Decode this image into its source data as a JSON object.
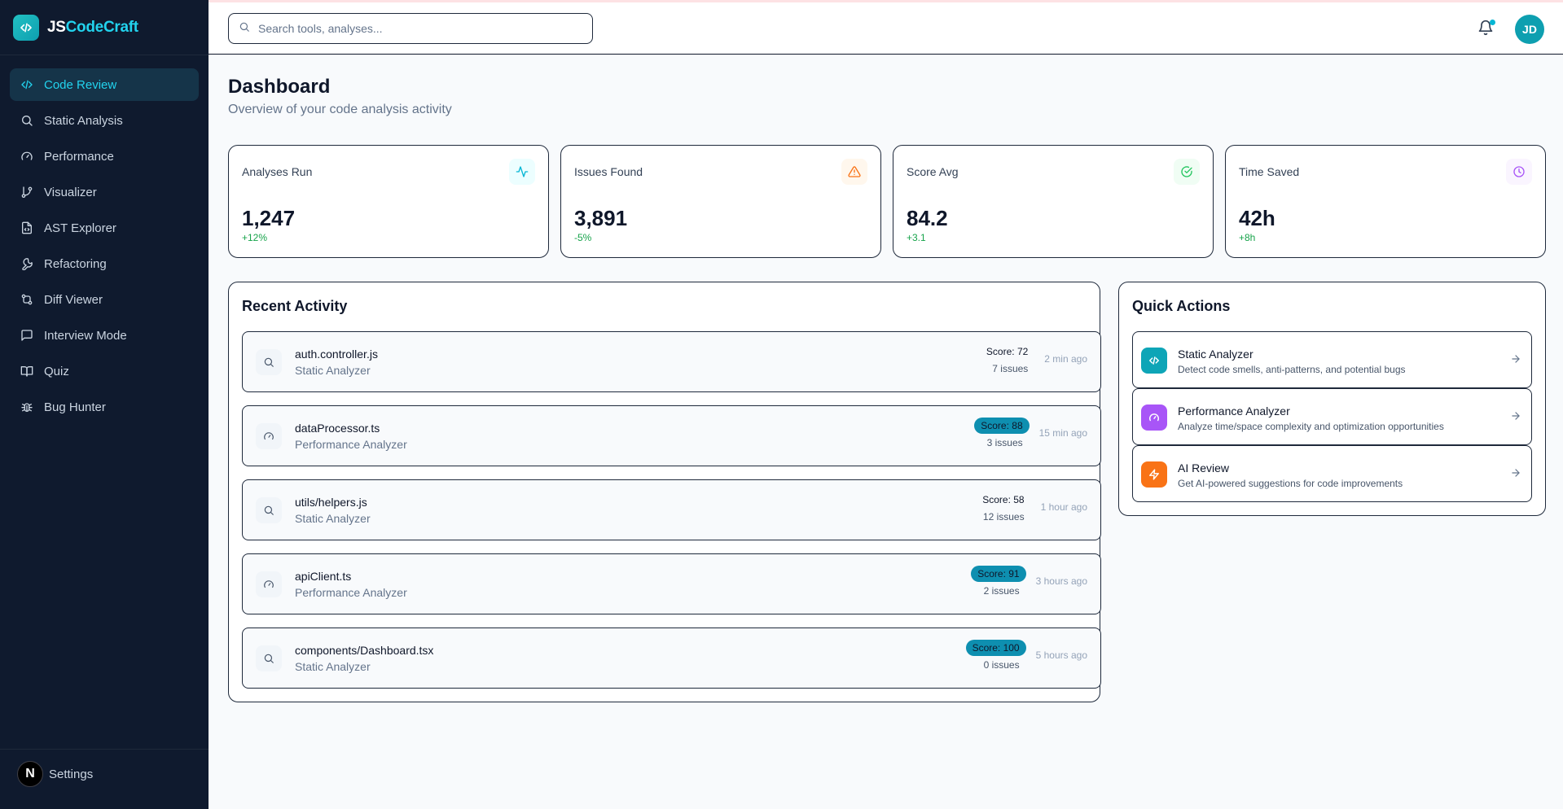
{
  "brand": {
    "prefix": "JS",
    "name": "CodeCraft"
  },
  "sidebar": {
    "items": [
      {
        "label": "Code Review",
        "icon": "code-icon",
        "active": true
      },
      {
        "label": "Static Analysis",
        "icon": "search-icon"
      },
      {
        "label": "Performance",
        "icon": "gauge-icon"
      },
      {
        "label": "Visualizer",
        "icon": "git-branch-icon"
      },
      {
        "label": "AST Explorer",
        "icon": "file-code-icon"
      },
      {
        "label": "Refactoring",
        "icon": "wrench-icon"
      },
      {
        "label": "Diff Viewer",
        "icon": "git-compare-icon"
      },
      {
        "label": "Interview Mode",
        "icon": "message-square-icon"
      },
      {
        "label": "Quiz",
        "icon": "book-open-icon"
      },
      {
        "label": "Bug Hunter",
        "icon": "bug-icon"
      }
    ],
    "settings_label": "Settings",
    "n_badge": "N"
  },
  "topbar": {
    "search_placeholder": "Search tools, analyses...",
    "avatar_initials": "JD"
  },
  "page": {
    "title": "Dashboard",
    "subtitle": "Overview of your code analysis activity"
  },
  "stats": [
    {
      "label": "Analyses Run",
      "value": "1,247",
      "change": "+12%",
      "icon": "activity-icon",
      "color": "#06b6d4",
      "bg": "#ecfeff"
    },
    {
      "label": "Issues Found",
      "value": "3,891",
      "change": "-5%",
      "icon": "alert-triangle-icon",
      "color": "#f97316",
      "bg": "#fff7ed"
    },
    {
      "label": "Score Avg",
      "value": "84.2",
      "change": "+3.1",
      "icon": "check-circle-icon",
      "color": "#22c55e",
      "bg": "#f0fdf4"
    },
    {
      "label": "Time Saved",
      "value": "42h",
      "change": "+8h",
      "icon": "clock-icon",
      "color": "#a855f7",
      "bg": "#faf5ff"
    }
  ],
  "recent": {
    "title": "Recent Activity",
    "items": [
      {
        "name": "auth.controller.js",
        "tool": "Static Analyzer",
        "score": "Score: 72",
        "issues": "7 issues",
        "time": "2 min ago",
        "pill": false,
        "icon": "search-icon"
      },
      {
        "name": "dataProcessor.ts",
        "tool": "Performance Analyzer",
        "score": "Score: 88",
        "issues": "3 issues",
        "time": "15 min ago",
        "pill": true,
        "icon": "gauge-icon"
      },
      {
        "name": "utils/helpers.js",
        "tool": "Static Analyzer",
        "score": "Score: 58",
        "issues": "12 issues",
        "time": "1 hour ago",
        "pill": false,
        "icon": "search-icon"
      },
      {
        "name": "apiClient.ts",
        "tool": "Performance Analyzer",
        "score": "Score: 91",
        "issues": "2 issues",
        "time": "3 hours ago",
        "pill": true,
        "icon": "gauge-icon"
      },
      {
        "name": "components/Dashboard.tsx",
        "tool": "Static Analyzer",
        "score": "Score: 100",
        "issues": "0 issues",
        "time": "5 hours ago",
        "pill": true,
        "icon": "search-icon"
      }
    ]
  },
  "quick": {
    "title": "Quick Actions",
    "items": [
      {
        "title": "Static Analyzer",
        "desc": "Detect code smells, anti-patterns, and potential bugs",
        "icon": "code-icon",
        "color": "#0ea5b7"
      },
      {
        "title": "Performance Analyzer",
        "desc": "Analyze time/space complexity and optimization opportunities",
        "icon": "gauge-icon",
        "color": "#a855f7"
      },
      {
        "title": "AI Review",
        "desc": "Get AI-powered suggestions for code improvements",
        "icon": "zap-icon",
        "color": "#f97316"
      }
    ]
  }
}
